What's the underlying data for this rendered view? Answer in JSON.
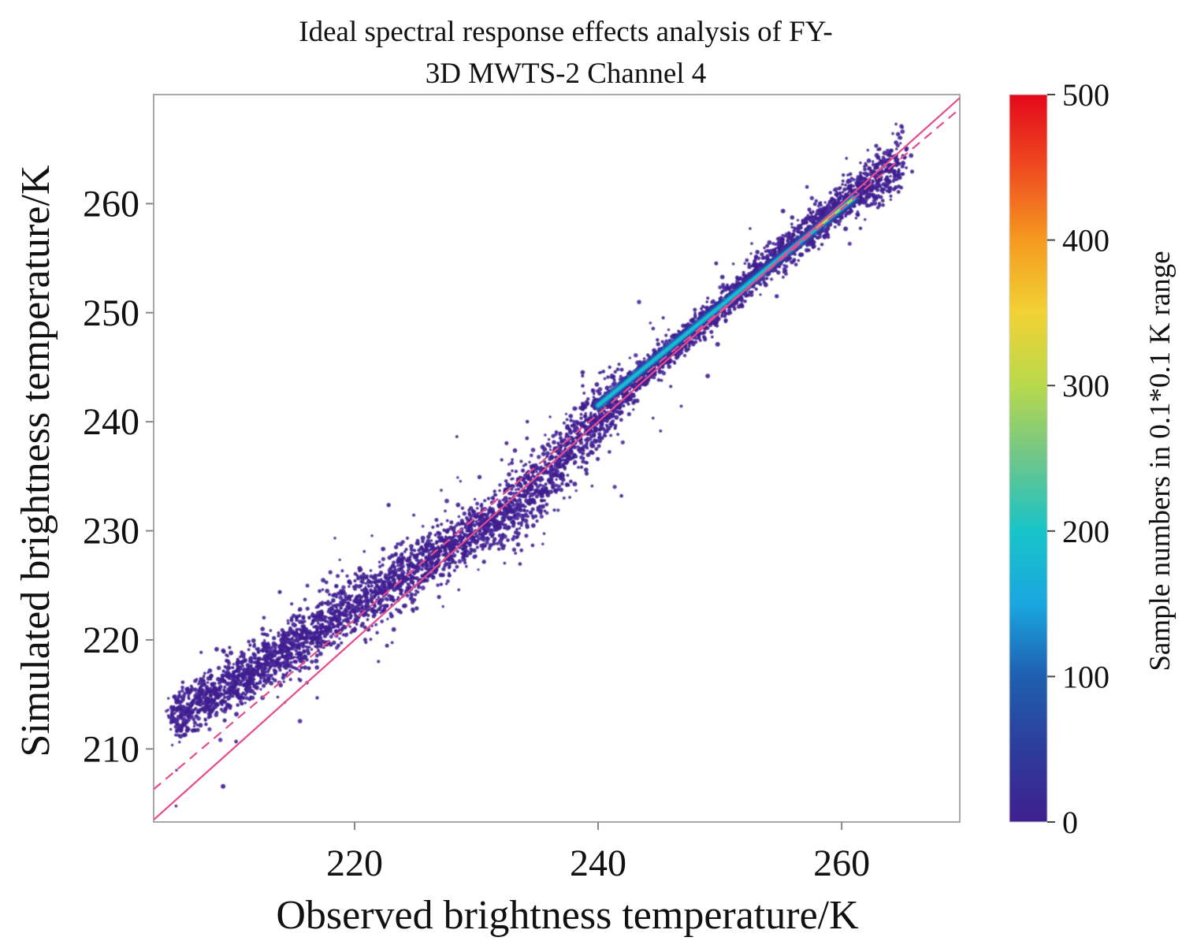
{
  "chart_data": {
    "type": "scatter",
    "title_lines": [
      "Ideal spectral response effects analysis of FY-",
      "3D MWTS-2 Channel 4"
    ],
    "xlabel": "Observed brightness temperature/K",
    "ylabel": "Simulated brightness temperature/K",
    "xlim": [
      203.5,
      269.7
    ],
    "ylim": [
      203.3,
      270.0
    ],
    "xticks": [
      220,
      240,
      260
    ],
    "yticks": [
      210,
      220,
      230,
      240,
      250,
      260
    ],
    "colorbar": {
      "label": "Sample numbers in 0.1*0.1 K range",
      "range": [
        0,
        500
      ],
      "ticks": [
        0,
        100,
        200,
        300,
        400,
        500
      ],
      "colors": [
        "#3f1f8f",
        "#2d3c9c",
        "#1f5fb0",
        "#1aa6e0",
        "#17c4c8",
        "#6ec68a",
        "#b8d94c",
        "#f2d234",
        "#f59a1f",
        "#ef4a20",
        "#e4081c"
      ]
    },
    "series": [
      {
        "kind": "density-scatter",
        "ridge_points": [
          {
            "x": 205,
            "y": 213.0
          },
          {
            "x": 210,
            "y": 216.0
          },
          {
            "x": 215,
            "y": 219.5
          },
          {
            "x": 220,
            "y": 223.0
          },
          {
            "x": 225,
            "y": 226.5
          },
          {
            "x": 230,
            "y": 230.0
          },
          {
            "x": 235,
            "y": 234.0
          },
          {
            "x": 240,
            "y": 240.5
          },
          {
            "x": 245,
            "y": 245.5
          },
          {
            "x": 250,
            "y": 250.5
          },
          {
            "x": 255,
            "y": 255.5
          },
          {
            "x": 260,
            "y": 260.0
          },
          {
            "x": 265,
            "y": 264.0
          }
        ],
        "peak_segment": {
          "x": [
            240,
            261
          ],
          "y": [
            241.5,
            260.5
          ]
        }
      },
      {
        "kind": "line",
        "style": "solid",
        "color": "#e64c8c",
        "x": [
          203.5,
          269.7
        ],
        "y": [
          203.5,
          269.7
        ]
      },
      {
        "kind": "line",
        "style": "dashed",
        "color": "#e64c8c",
        "x": [
          203.5,
          269.7
        ],
        "y": [
          206.3,
          268.7
        ]
      }
    ]
  }
}
